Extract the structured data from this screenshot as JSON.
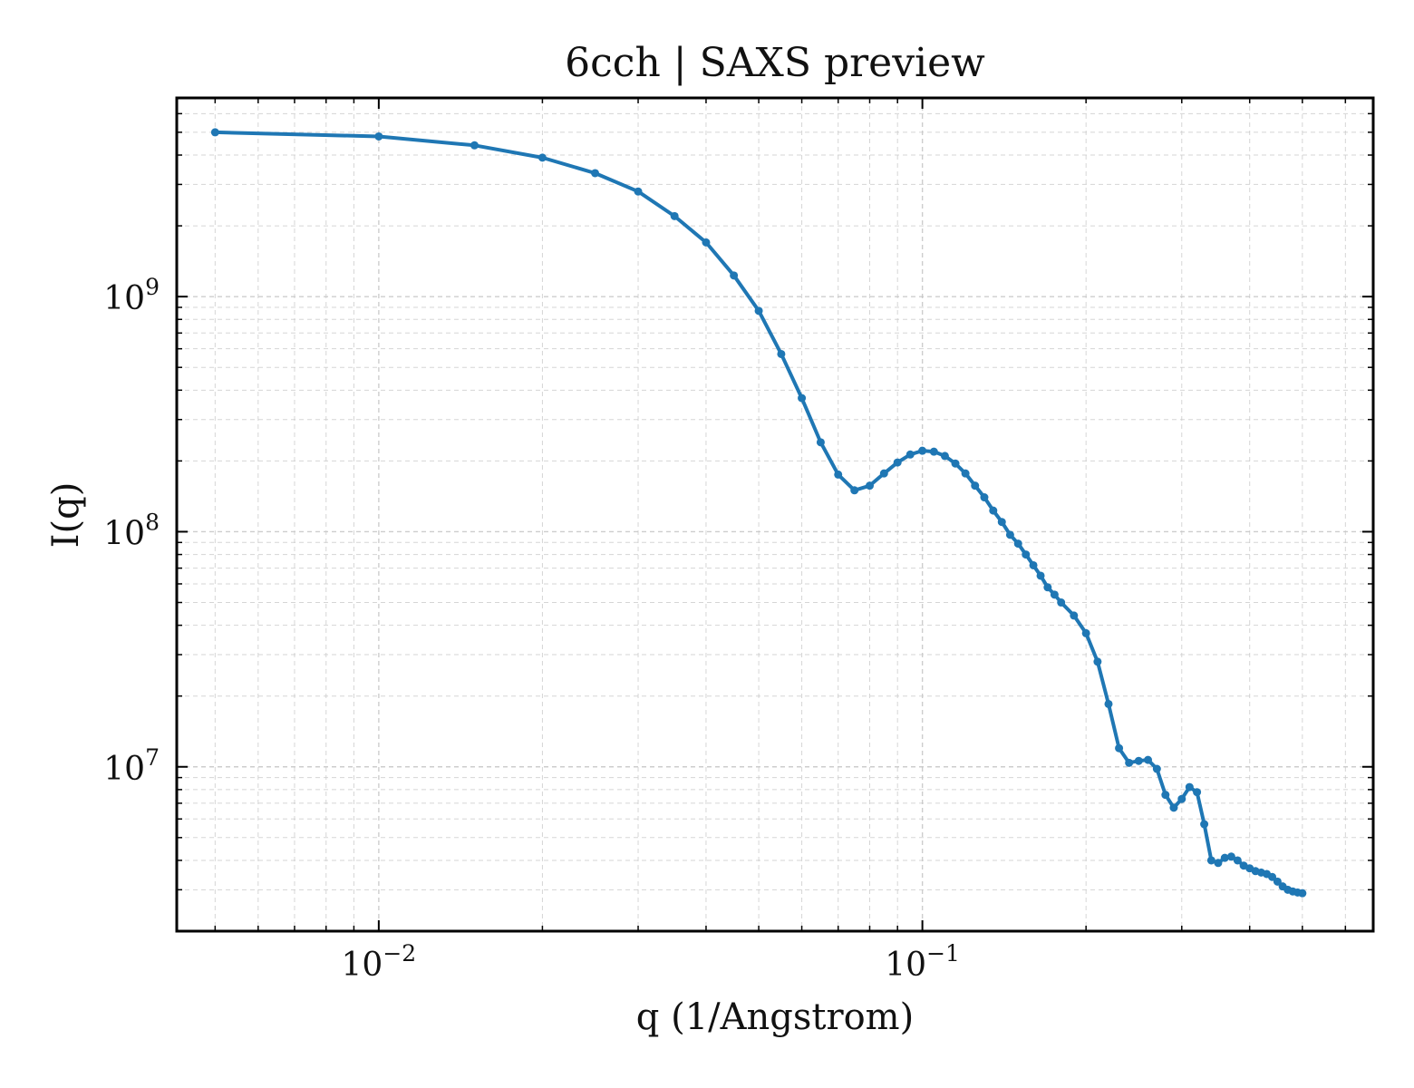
{
  "chart_data": {
    "type": "line",
    "title": "6cch | SAXS preview",
    "xlabel": "q (1/Angstrom)",
    "ylabel": "I(q)",
    "xscale": "log",
    "yscale": "log",
    "xlim": [
      0.00425,
      0.675
    ],
    "ylim": [
      2000000,
      7000000000
    ],
    "grid": true,
    "color": "#1f77b4",
    "x_ticks": [
      {
        "base": "10",
        "exp": "−2",
        "value": 0.01
      },
      {
        "base": "10",
        "exp": "−1",
        "value": 0.1
      }
    ],
    "y_ticks": [
      {
        "base": "10",
        "exp": "7",
        "value": 10000000
      },
      {
        "base": "10",
        "exp": "8",
        "value": 100000000
      },
      {
        "base": "10",
        "exp": "9",
        "value": 1000000000
      }
    ],
    "series": [
      {
        "x": [
          0.005,
          0.01,
          0.015,
          0.02,
          0.025,
          0.03,
          0.035,
          0.04,
          0.045,
          0.05,
          0.055,
          0.06,
          0.065,
          0.07,
          0.075,
          0.08,
          0.085,
          0.09,
          0.095,
          0.1,
          0.105,
          0.11,
          0.115,
          0.12,
          0.125,
          0.13,
          0.135,
          0.14,
          0.145,
          0.15,
          0.155,
          0.16,
          0.165,
          0.17,
          0.175,
          0.18,
          0.19,
          0.2,
          0.21,
          0.22,
          0.23,
          0.24,
          0.25,
          0.26,
          0.27,
          0.28,
          0.29,
          0.3,
          0.31,
          0.32,
          0.33,
          0.34,
          0.35,
          0.36,
          0.37,
          0.38,
          0.39,
          0.4,
          0.41,
          0.42,
          0.43,
          0.44,
          0.45,
          0.46,
          0.47,
          0.48,
          0.49,
          0.5
        ],
        "y": [
          5000000000,
          4800000000,
          4400000000,
          3900000000,
          3350000000,
          2800000000,
          2200000000,
          1700000000,
          1230000000,
          870000000,
          570000000,
          370000000,
          240000000,
          175000000,
          150000000,
          157000000,
          177000000,
          197000000,
          213000000,
          221000000,
          219000000,
          210000000,
          195000000,
          177000000,
          157000000,
          140000000,
          123000000,
          110000000,
          97000000,
          89000000,
          80000000,
          72000000,
          65000000,
          58000000,
          54000000,
          50000000,
          44000000,
          37000000,
          28000000,
          18500000,
          12000000,
          10400000,
          10600000,
          10700000,
          9800000,
          7600000,
          6700000,
          7300000,
          8200000,
          7800000,
          5700000,
          4000000,
          3900000,
          4100000,
          4150000,
          4000000,
          3800000,
          3700000,
          3600000,
          3550000,
          3500000,
          3400000,
          3250000,
          3100000,
          3000000,
          2950000,
          2920000,
          2900000
        ]
      }
    ]
  }
}
